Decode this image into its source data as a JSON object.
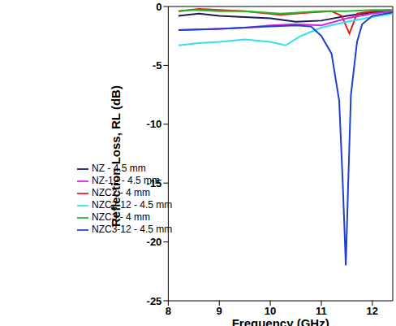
{
  "chart_data": {
    "type": "line",
    "x_label": "Frequency (GHz)",
    "y_label": "Reflection Loss, RL (dB)",
    "xlim": [
      8,
      12.4
    ],
    "xticks": [
      8,
      9,
      10,
      11,
      12
    ],
    "ylim": [
      -25,
      0
    ],
    "yticks": [
      -25,
      -20,
      -15,
      -10,
      -5,
      0
    ],
    "grid": false,
    "legend": "lower left",
    "series": [
      {
        "name": "NZ - 4.5 mm",
        "color": "#1a1a5e",
        "x": [
          8.2,
          8.6,
          9.0,
          9.5,
          10.0,
          10.5,
          11.0,
          11.5,
          12.0,
          12.4
        ],
        "values": [
          -0.8,
          -0.6,
          -0.8,
          -0.9,
          -1.0,
          -1.3,
          -1.2,
          -0.8,
          -0.5,
          -0.4
        ]
      },
      {
        "name": "NZC2 - 4 mm",
        "color": "#e02020",
        "x": [
          8.2,
          8.6,
          9.0,
          9.5,
          10.2,
          10.8,
          11.2,
          11.4,
          11.55,
          11.7,
          12.0,
          12.4
        ],
        "values": [
          -0.4,
          -0.2,
          -0.3,
          -0.4,
          -0.7,
          -0.5,
          -0.4,
          -0.8,
          -2.3,
          -0.6,
          -0.4,
          -0.3
        ]
      },
      {
        "name": "NZC3 - 4 mm",
        "color": "#22bb22",
        "x": [
          8.2,
          8.5,
          9.0,
          9.5,
          10.2,
          11.0,
          11.5,
          12.0,
          12.4
        ],
        "values": [
          -0.4,
          -0.3,
          -0.4,
          -0.4,
          -0.6,
          -0.4,
          -0.4,
          -0.3,
          -0.3
        ]
      },
      {
        "name": "NZ-12 - 4.5 mm",
        "color": "#dd22dd",
        "x": [
          8.2,
          9.0,
          9.5,
          10.0,
          10.5,
          11.0,
          11.5,
          12.0,
          12.4
        ],
        "values": [
          -2.0,
          -1.9,
          -1.8,
          -1.6,
          -1.5,
          -1.6,
          -1.0,
          -0.6,
          -0.4
        ]
      },
      {
        "name": "NZC2-12 - 4.5 mm",
        "color": "#33e0f0",
        "x": [
          8.2,
          8.6,
          9.0,
          9.5,
          10.0,
          10.3,
          10.6,
          11.0,
          11.5,
          12.0,
          12.4
        ],
        "values": [
          -3.3,
          -3.1,
          -3.0,
          -2.8,
          -3.0,
          -3.3,
          -2.5,
          -1.8,
          -1.3,
          -0.9,
          -0.6
        ]
      },
      {
        "name": "NZC3-12 - 4.5 mm",
        "color": "#1f3fcf",
        "x": [
          8.2,
          9.0,
          9.5,
          10.0,
          10.5,
          10.8,
          11.0,
          11.2,
          11.35,
          11.42,
          11.48,
          11.52,
          11.58,
          11.7,
          11.8,
          12.0,
          12.4
        ],
        "values": [
          -2.0,
          -1.9,
          -1.8,
          -1.7,
          -1.6,
          -1.7,
          -2.5,
          -4.0,
          -8.0,
          -15.0,
          -22.0,
          -16.0,
          -7.5,
          -3.0,
          -1.5,
          -0.8,
          -0.5
        ]
      }
    ]
  }
}
